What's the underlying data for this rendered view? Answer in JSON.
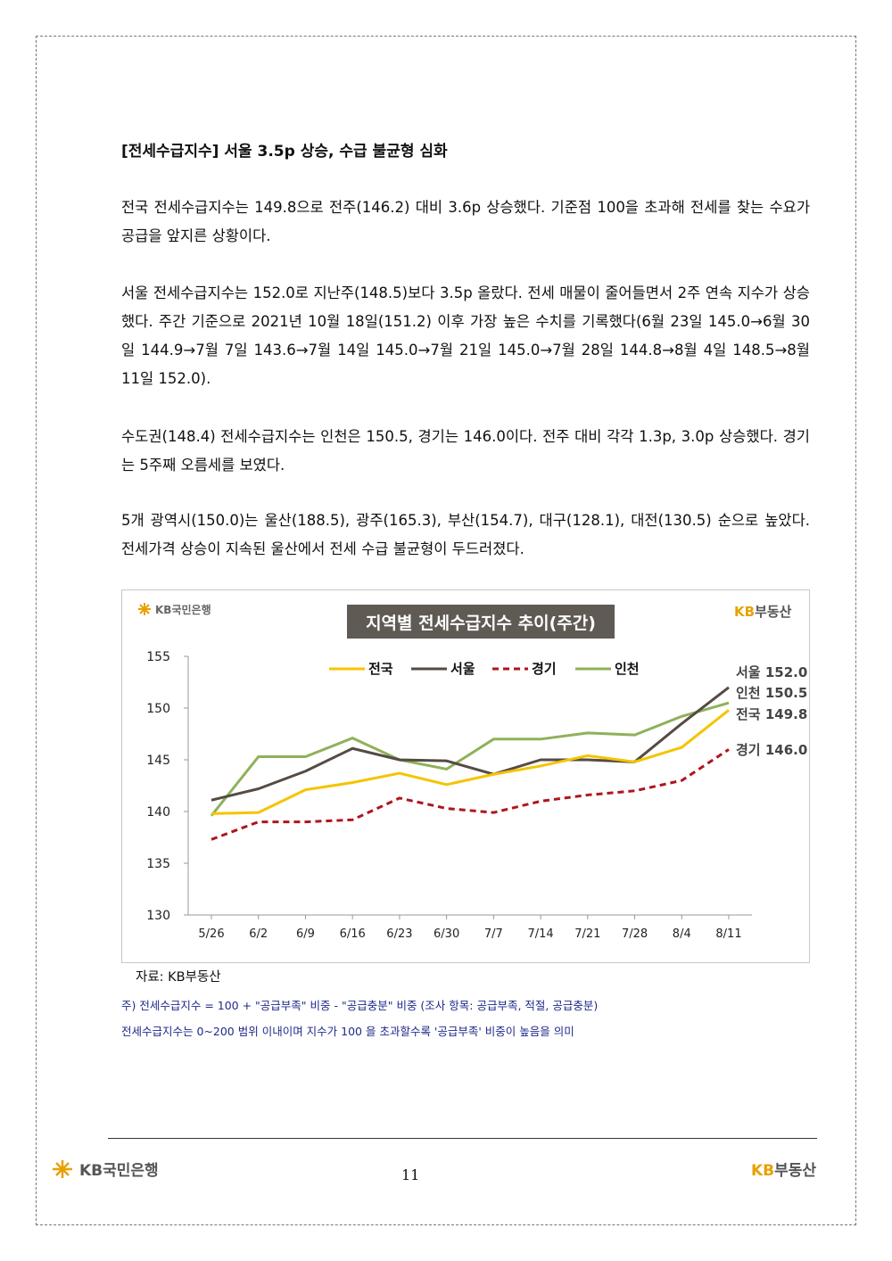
{
  "document": {
    "section_title": "[전세수급지수] 서울 3.5p 상승, 수급 불균형 심화",
    "paragraphs": [
      "전국 전세수급지수는 149.8으로 전주(146.2) 대비 3.6p 상승했다. 기준점 100을 초과해 전세를 찾는 수요가 공급을 앞지른 상황이다.",
      "서울 전세수급지수는 152.0로 지난주(148.5)보다 3.5p 올랐다. 전세 매물이 줄어들면서 2주 연속 지수가 상승했다. 주간 기준으로 2021년 10월 18일(151.2) 이후 가장 높은 수치를 기록했다(6월 23일 145.0→6월 30일 144.9→7월 7일 143.6→7월 14일 145.0→7월 21일 145.0→7월 28일 144.8→8월 4일 148.5→8월 11일 152.0).",
      "수도권(148.4) 전세수급지수는 인천은 150.5, 경기는 146.0이다. 전주 대비 각각 1.3p, 3.0p 상승했다. 경기는 5주째 오름세를 보였다.",
      "5개 광역시(150.0)는 울산(188.5), 광주(165.3), 부산(154.7), 대구(128.1), 대전(130.5) 순으로 높았다. 전세가격 상승이 지속된 울산에서 전세 수급 불균형이 두드러졌다."
    ],
    "source": "자료: KB부동산",
    "notes": [
      "주) 전세수급지수 = 100 + \"공급부족\" 비중 - \"공급충분\" 비중 (조사 항목: 공급부족, 적절, 공급충분)",
      "전세수급지수는 0~200 범위 이내이며 지수가 100 을 초과할수록 '공급부족' 비중이 높음을 의미"
    ],
    "footer": {
      "left_logo": "KB국민은행",
      "page_number": "11",
      "right_logo_kb": "KB",
      "right_logo_rest": "부동산"
    }
  },
  "chart_logo_left": "KB국민은행",
  "chart_logo_right_kb": "KB",
  "chart_logo_right_rest": "부동산",
  "chart_data": {
    "type": "line",
    "title": "지역별 전세수급지수 추이(주간)",
    "categories": [
      "5/26",
      "6/2",
      "6/9",
      "6/16",
      "6/23",
      "6/30",
      "7/7",
      "7/14",
      "7/21",
      "7/28",
      "8/4",
      "8/11"
    ],
    "ylim": [
      130,
      155
    ],
    "yticks": [
      130,
      135,
      140,
      145,
      150,
      155
    ],
    "legend_position": "top",
    "series": [
      {
        "name": "전국",
        "color": "#f5c400",
        "dash": false,
        "values": [
          139.8,
          139.9,
          142.1,
          142.8,
          143.7,
          142.6,
          143.6,
          144.4,
          145.4,
          144.8,
          146.2,
          149.8
        ],
        "end_label": "전국 149.8"
      },
      {
        "name": "서울",
        "color": "#554b45",
        "dash": false,
        "values": [
          141.1,
          142.2,
          143.9,
          146.1,
          145.0,
          144.9,
          143.6,
          145.0,
          145.0,
          144.8,
          148.5,
          152.0
        ],
        "end_label": "서울 152.0"
      },
      {
        "name": "경기",
        "color": "#b0141c",
        "dash": true,
        "values": [
          137.3,
          139.0,
          139.0,
          139.2,
          141.3,
          140.3,
          139.9,
          141.0,
          141.6,
          142.0,
          143.0,
          146.0
        ],
        "end_label": "경기 146.0"
      },
      {
        "name": "인천",
        "color": "#8fb158",
        "dash": false,
        "values": [
          139.6,
          145.3,
          145.3,
          147.1,
          145.0,
          144.1,
          147.0,
          147.0,
          147.6,
          147.4,
          149.2,
          150.5
        ],
        "end_label": "인천 150.5"
      }
    ]
  }
}
